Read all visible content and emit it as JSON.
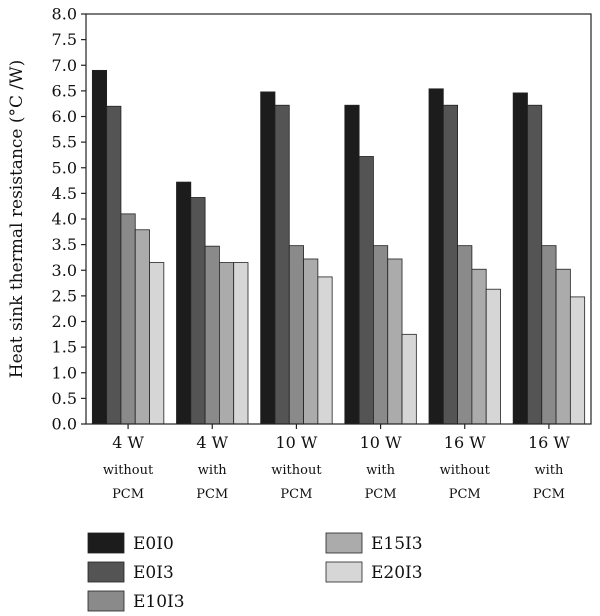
{
  "chart_data": {
    "type": "bar",
    "ylabel": "Heat sink thermal resistance (°C /W)",
    "ylim": [
      0,
      8
    ],
    "yticks": [
      "0.0",
      "0.5",
      "1.0",
      "1.5",
      "2.0",
      "2.5",
      "3.0",
      "3.5",
      "4.0",
      "4.5",
      "5.0",
      "5.5",
      "6.0",
      "6.5",
      "7.0",
      "7.5",
      "8.0"
    ],
    "categories": [
      {
        "main": "4 W",
        "line2": "without",
        "line3": "PCM"
      },
      {
        "main": "4 W",
        "line2": "with",
        "line3": "PCM"
      },
      {
        "main": "10 W",
        "line2": "without",
        "line3": "PCM"
      },
      {
        "main": "10 W",
        "line2": "with",
        "line3": "PCM"
      },
      {
        "main": "16 W",
        "line2": "without",
        "line3": "PCM"
      },
      {
        "main": "16 W",
        "line2": "with",
        "line3": "PCM"
      }
    ],
    "series": [
      {
        "name": "E0I0",
        "color": "#1c1c1c",
        "values": [
          6.9,
          4.72,
          6.48,
          6.22,
          6.54,
          6.46
        ]
      },
      {
        "name": "E0I3",
        "color": "#545454",
        "values": [
          6.2,
          4.42,
          6.22,
          5.22,
          6.22,
          6.22
        ]
      },
      {
        "name": "E10I3",
        "color": "#8a8a8a",
        "values": [
          4.1,
          3.47,
          3.48,
          3.48,
          3.48,
          3.48
        ]
      },
      {
        "name": "E15I3",
        "color": "#ababab",
        "values": [
          3.79,
          3.15,
          3.22,
          3.22,
          3.02,
          3.02
        ]
      },
      {
        "name": "E20I3",
        "color": "#d6d6d6",
        "values": [
          3.15,
          3.15,
          2.87,
          1.75,
          2.63,
          2.48
        ]
      }
    ],
    "legend_placement": "bottom",
    "grid": false
  }
}
